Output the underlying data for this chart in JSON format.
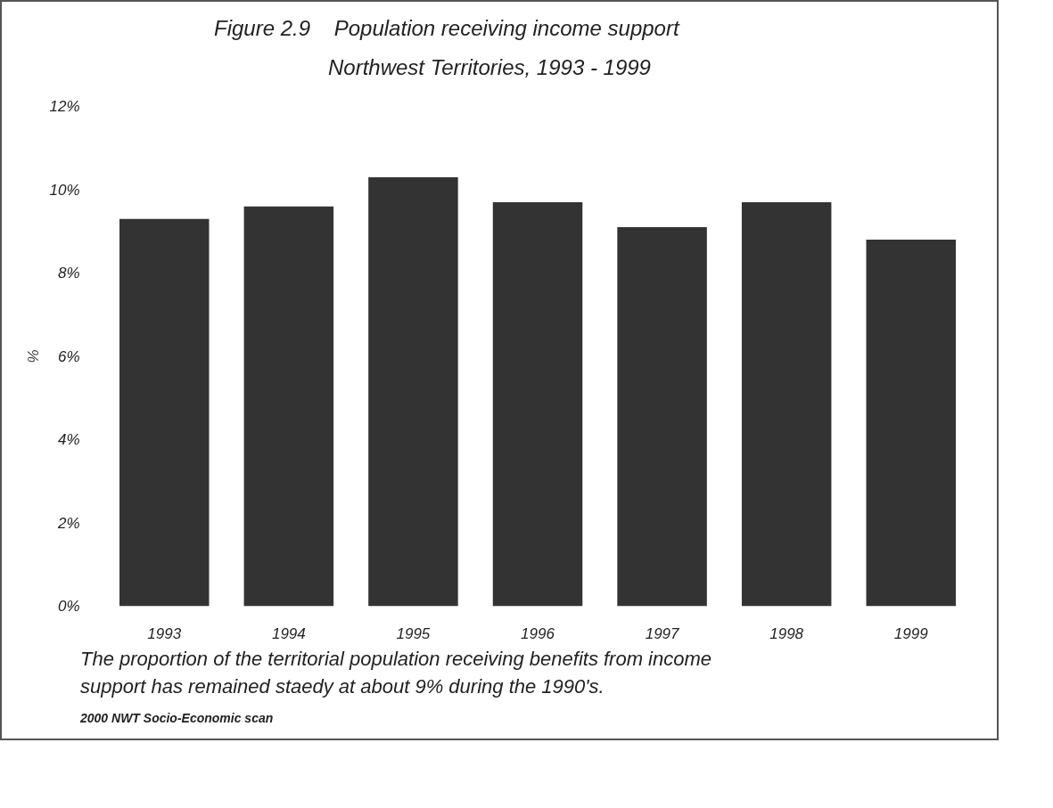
{
  "chart_data": {
    "type": "bar",
    "title": "Figure 2.9    Population receiving income support",
    "subtitle": "Northwest Territories, 1993 - 1999",
    "ylabel": "%",
    "categories": [
      "1993",
      "1994",
      "1995",
      "1996",
      "1997",
      "1998",
      "1999"
    ],
    "values": [
      9.3,
      9.6,
      10.3,
      9.7,
      9.1,
      9.7,
      8.8
    ],
    "color": "#333333",
    "ylim": [
      0,
      12
    ],
    "yticks": [
      {
        "value": 0,
        "label": "0%"
      },
      {
        "value": 2,
        "label": "2%"
      },
      {
        "value": 4,
        "label": "4%"
      },
      {
        "value": 6,
        "label": "6%"
      },
      {
        "value": 8,
        "label": "8%"
      },
      {
        "value": 10,
        "label": "10%"
      },
      {
        "value": 12,
        "label": "12%"
      }
    ],
    "grid": false,
    "annotations": [
      "The proportion of the territorial population receiving benefits from income support has remained staedy at about 9% during the 1990's.",
      "2000 NWT Socio-Economic scan"
    ]
  }
}
